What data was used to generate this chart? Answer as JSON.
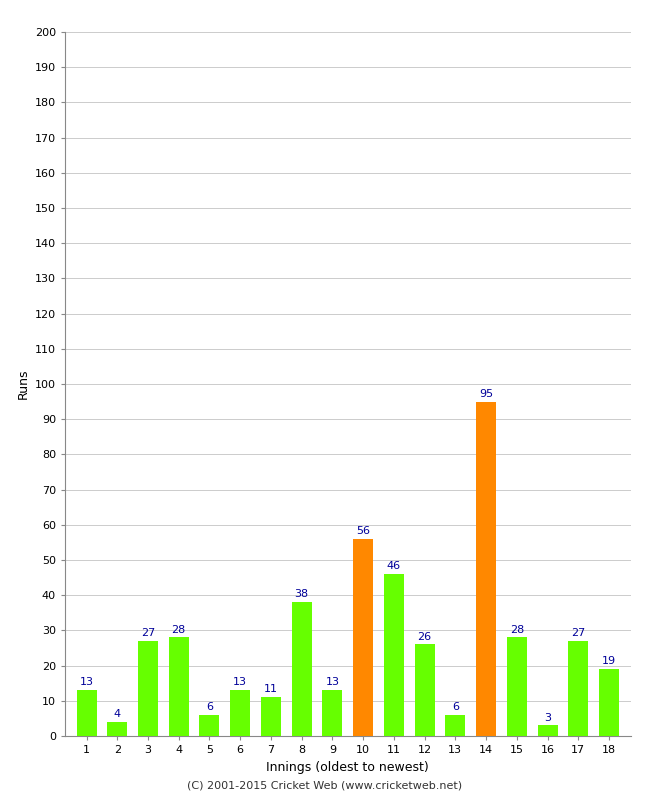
{
  "xlabel": "Innings (oldest to newest)",
  "ylabel": "Runs",
  "categories": [
    1,
    2,
    3,
    4,
    5,
    6,
    7,
    8,
    9,
    10,
    11,
    12,
    13,
    14,
    15,
    16,
    17,
    18
  ],
  "values": [
    13,
    4,
    27,
    28,
    6,
    13,
    11,
    38,
    13,
    56,
    46,
    26,
    6,
    95,
    28,
    3,
    27,
    19
  ],
  "bar_colors": [
    "#66ff00",
    "#66ff00",
    "#66ff00",
    "#66ff00",
    "#66ff00",
    "#66ff00",
    "#66ff00",
    "#66ff00",
    "#66ff00",
    "#ff8800",
    "#66ff00",
    "#66ff00",
    "#66ff00",
    "#ff8800",
    "#66ff00",
    "#66ff00",
    "#66ff00",
    "#66ff00"
  ],
  "ylim": [
    0,
    200
  ],
  "yticks": [
    0,
    10,
    20,
    30,
    40,
    50,
    60,
    70,
    80,
    90,
    100,
    110,
    120,
    130,
    140,
    150,
    160,
    170,
    180,
    190,
    200
  ],
  "label_color": "#000099",
  "background_color": "#ffffff",
  "footer": "(C) 2001-2015 Cricket Web (www.cricketweb.net)",
  "grid_color": "#cccccc"
}
